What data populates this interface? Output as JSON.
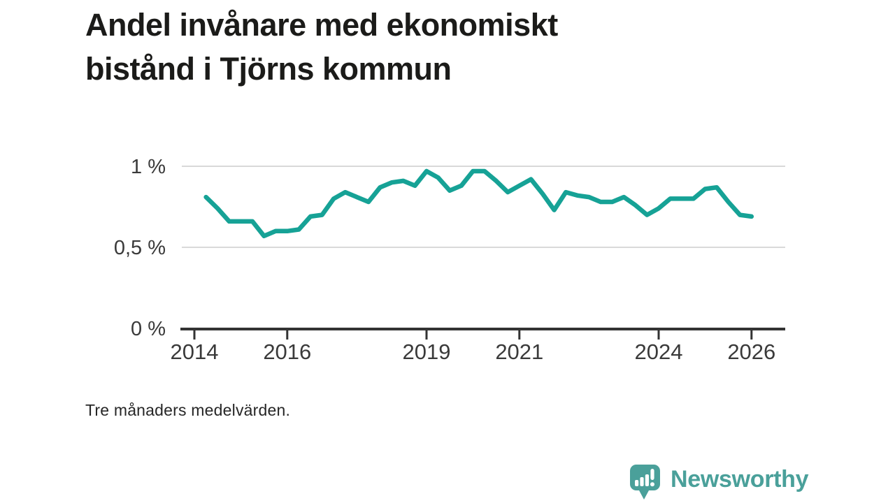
{
  "title": "Andel invånare med ekonomiskt bistånd i Tjörns kommun",
  "caption": "Tre månaders medelvärden.",
  "branding": {
    "logo_text": "Newsworthy",
    "logo_icon": "newsworthy-speech-bubble-bar-chart-icon"
  },
  "colors": {
    "title": "#1b1b19",
    "tick_text": "#3a3a3a",
    "axis": "#333333",
    "grid": "#d9d9d9",
    "line": "#16a296",
    "brand_teal": "#4aa09a",
    "background": "#ffffff"
  },
  "chart_data": {
    "type": "line",
    "title": "Andel invånare med ekonomiskt bistånd i Tjörns kommun",
    "subtitle": "",
    "note": "Tre månaders medelvärden.",
    "unit": "%",
    "xlabel": "",
    "ylabel": "",
    "grid": "horizontal-only",
    "legend": "none",
    "xlim": [
      2013.7,
      2026.72
    ],
    "ylim": [
      0,
      1.1
    ],
    "x_tick_values": [
      2014,
      2016,
      2019,
      2021,
      2024,
      2026
    ],
    "x_tick_labels": [
      "2014",
      "2016",
      "2019",
      "2021",
      "2024",
      "2026"
    ],
    "y_tick_values": [
      0,
      0.5,
      1
    ],
    "y_tick_labels": [
      "0 %",
      "0,5 %",
      "1 %"
    ],
    "series": [
      {
        "name": "Andel invånare med ekonomiskt bistånd i Tjörns kommun (%)",
        "cadence": "quarterly (three-month averages), decimal years",
        "x": [
          2014.25,
          2014.5,
          2014.75,
          2015.0,
          2015.25,
          2015.5,
          2015.75,
          2016.0,
          2016.25,
          2016.5,
          2016.75,
          2017.0,
          2017.25,
          2017.5,
          2017.75,
          2018.0,
          2018.25,
          2018.5,
          2018.75,
          2019.0,
          2019.25,
          2019.5,
          2019.75,
          2020.0,
          2020.25,
          2020.5,
          2020.75,
          2021.0,
          2021.25,
          2021.5,
          2021.75,
          2022.0,
          2022.25,
          2022.5,
          2022.75,
          2023.0,
          2023.25,
          2023.5,
          2023.75,
          2024.0,
          2024.25,
          2024.5,
          2024.75,
          2025.0,
          2025.25,
          2025.5,
          2025.75,
          2026.0
        ],
        "y": [
          0.81,
          0.74,
          0.66,
          0.66,
          0.66,
          0.57,
          0.6,
          0.6,
          0.61,
          0.69,
          0.7,
          0.8,
          0.84,
          0.81,
          0.78,
          0.87,
          0.9,
          0.91,
          0.88,
          0.97,
          0.93,
          0.85,
          0.88,
          0.97,
          0.97,
          0.91,
          0.84,
          0.88,
          0.92,
          0.83,
          0.73,
          0.84,
          0.82,
          0.81,
          0.78,
          0.78,
          0.81,
          0.76,
          0.7,
          0.74,
          0.8,
          0.8,
          0.8,
          0.86,
          0.87,
          0.78,
          0.7,
          0.69
        ]
      }
    ]
  }
}
